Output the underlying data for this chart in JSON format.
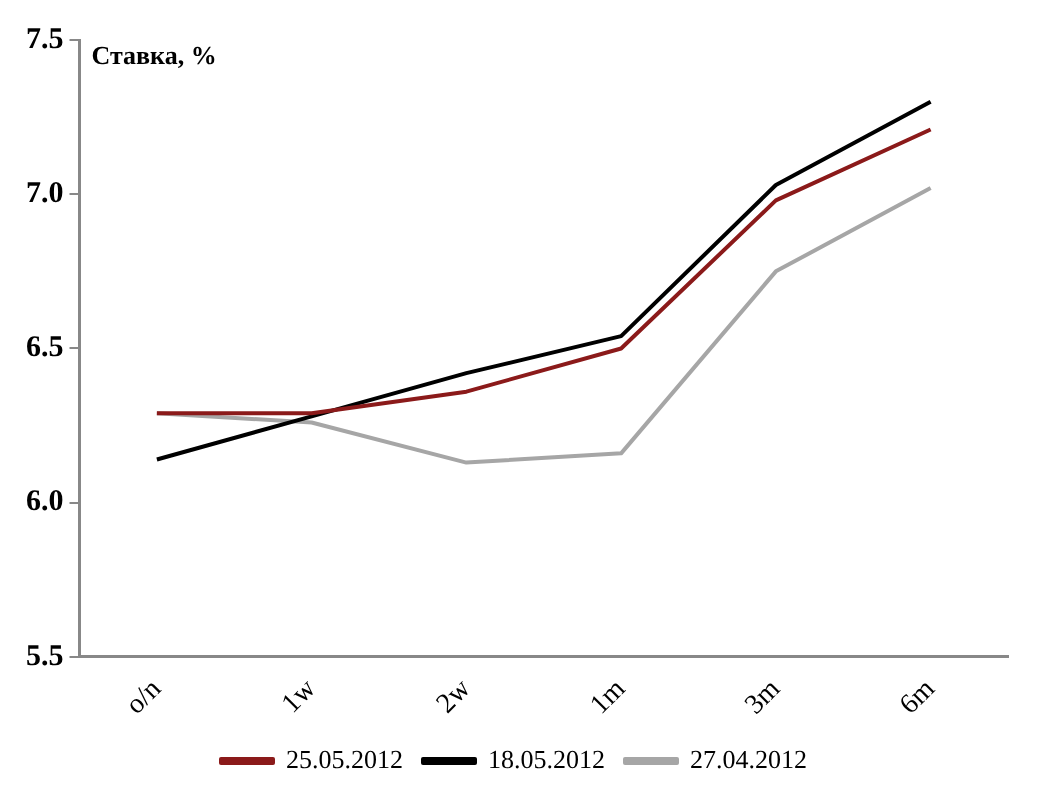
{
  "chart_data": {
    "type": "line",
    "ylabel": "Ставка, %",
    "categories": [
      "o/n",
      "1w",
      "2w",
      "1m",
      "3m",
      "6m"
    ],
    "series": [
      {
        "name": "25.05.2012",
        "color": "#8b1a1a",
        "values": [
          6.29,
          6.29,
          6.36,
          6.5,
          6.98,
          7.21
        ]
      },
      {
        "name": "18.05.2012",
        "color": "#000000",
        "values": [
          6.14,
          6.28,
          6.42,
          6.54,
          7.03,
          7.3
        ]
      },
      {
        "name": "27.04.2012",
        "color": "#a6a6a6",
        "values": [
          6.29,
          6.26,
          6.13,
          6.16,
          6.75,
          7.02
        ]
      }
    ],
    "ylim": [
      5.5,
      7.5
    ],
    "yticks": [
      {
        "value": 5.5,
        "label": "5.5"
      },
      {
        "value": 6,
        "label": "6.0"
      },
      {
        "value": 6.5,
        "label": "6.5"
      },
      {
        "value": 7,
        "label": "7.0"
      },
      {
        "value": 7.5,
        "label": "7.5"
      }
    ],
    "grid": false,
    "legend": "bottom",
    "marker": "none",
    "line_style": "solid"
  }
}
